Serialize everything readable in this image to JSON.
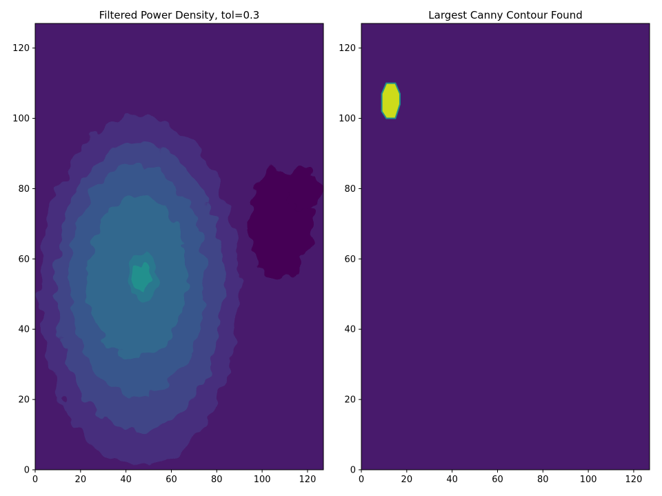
{
  "colors": {
    "level0": "#440154",
    "level1": "#481a6c",
    "level2": "#472f7d",
    "level3": "#414487",
    "level4": "#39568c",
    "level5": "#31688e",
    "level6": "#2a788e",
    "level7": "#21908d",
    "level8": "#22a884",
    "level9": "#35b779",
    "contour_fill": "#cddc1a",
    "contour_edge": "#21908d",
    "axis": "#000000"
  },
  "chart_data": [
    {
      "type": "heatmap",
      "title": "Filtered Power Density, tol=0.3",
      "xlabel": "",
      "ylabel": "",
      "xlim": [
        0,
        127
      ],
      "ylim": [
        0,
        127
      ],
      "x_ticks": [
        0,
        20,
        40,
        60,
        80,
        100,
        120
      ],
      "y_ticks": [
        0,
        20,
        40,
        60,
        80,
        100,
        120
      ],
      "grid": false,
      "colormap": "viridis",
      "background_level": 1,
      "bright_center": [
        47,
        55
      ],
      "regions": [
        {
          "level": 0,
          "center": [
            108,
            70
          ],
          "rx": 14,
          "ry": 16
        },
        {
          "level": 0,
          "center": [
            118,
            80
          ],
          "rx": 8,
          "ry": 6
        },
        {
          "level": 2,
          "center": [
            46,
            51
          ],
          "rx": 44,
          "ry": 50
        },
        {
          "level": 3,
          "center": [
            46,
            52
          ],
          "rx": 37,
          "ry": 41
        },
        {
          "level": 4,
          "center": [
            45,
            54
          ],
          "rx": 30,
          "ry": 33
        },
        {
          "level": 5,
          "center": [
            45,
            55
          ],
          "rx": 22,
          "ry": 23
        },
        {
          "level": 6,
          "center": [
            48,
            55
          ],
          "rx": 6,
          "ry": 7
        },
        {
          "level": 7,
          "center": [
            47,
            55
          ],
          "rx": 3,
          "ry": 4
        }
      ]
    },
    {
      "type": "heatmap",
      "title": "Largest Canny Contour Found",
      "xlabel": "",
      "ylabel": "",
      "xlim": [
        0,
        127
      ],
      "ylim": [
        0,
        127
      ],
      "x_ticks": [
        0,
        20,
        40,
        60,
        80,
        100,
        120
      ],
      "y_ticks": [
        0,
        20,
        40,
        60,
        80,
        100,
        120
      ],
      "grid": false,
      "colormap": "viridis",
      "background_level": 1,
      "contour_polygon": [
        [
          9,
          102
        ],
        [
          11,
          100
        ],
        [
          15,
          100
        ],
        [
          17,
          104
        ],
        [
          17,
          107
        ],
        [
          15,
          110
        ],
        [
          11,
          110
        ],
        [
          9,
          107
        ]
      ]
    }
  ]
}
